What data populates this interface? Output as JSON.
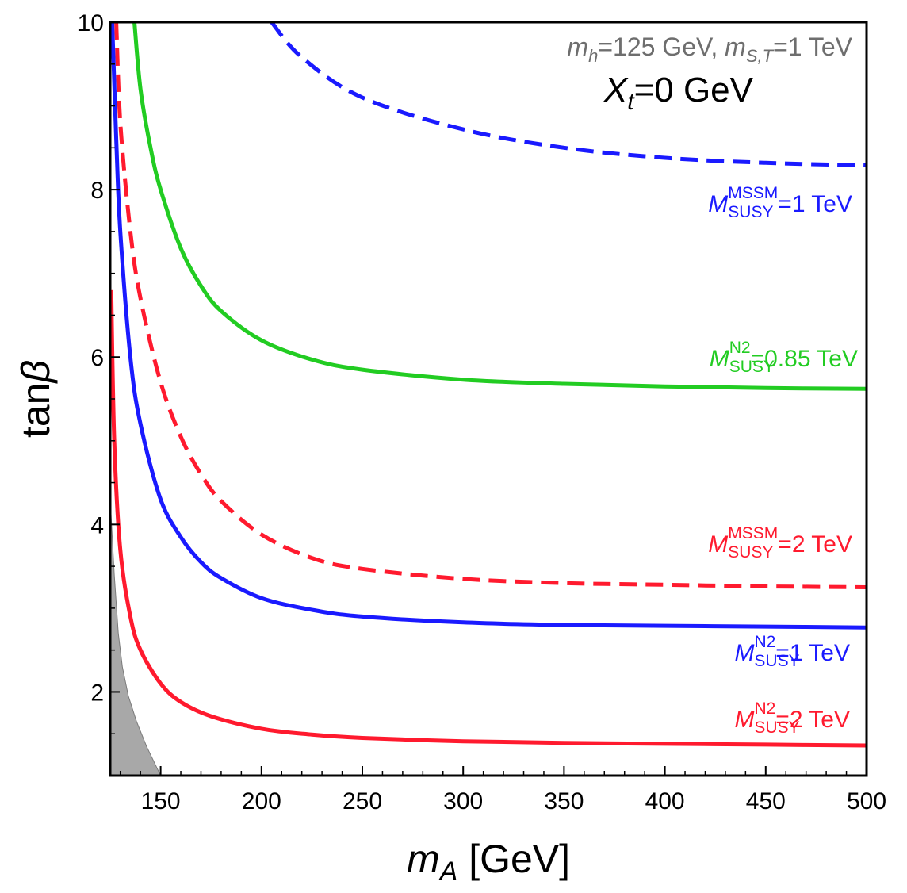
{
  "chart_data": {
    "type": "line",
    "xlabel": {
      "main": "m",
      "sub": "A",
      "unit": " [GeV]"
    },
    "ylabel": {
      "prefix": "tan",
      "greek": "β"
    },
    "xlim": [
      125,
      500
    ],
    "ylim": [
      1,
      10
    ],
    "xticks": [
      150,
      200,
      250,
      300,
      350,
      400,
      450,
      500
    ],
    "yticks": [
      2,
      4,
      6,
      8,
      10
    ],
    "grid": false,
    "annotations": {
      "params": {
        "m1": "m",
        "s1": "h",
        "t1": "=125 GeV, ",
        "m2": "m",
        "s2": "S,T",
        "t2": "=1 TeV",
        "color": "#6e6e6e"
      },
      "xt": {
        "m": "X",
        "s": "t",
        "t": "=0 GeV",
        "color": "#000000"
      }
    },
    "series": [
      {
        "label": {
          "m": "M",
          "sup": "MSSM",
          "sub": "SUSY",
          "t": "=1 TeV"
        },
        "color": "#1a1aff",
        "dash": true,
        "points": [
          [
            205,
            10
          ],
          [
            220,
            9.58
          ],
          [
            250,
            9.1
          ],
          [
            300,
            8.72
          ],
          [
            350,
            8.5
          ],
          [
            400,
            8.38
          ],
          [
            450,
            8.32
          ],
          [
            500,
            8.29
          ]
        ]
      },
      {
        "label": {
          "m": "M",
          "sup": "N2",
          "sub": "SUSY",
          "t": "=0.85 TeV"
        },
        "color": "#22cc22",
        "dash": false,
        "points": [
          [
            137,
            10
          ],
          [
            140,
            9.2
          ],
          [
            145,
            8.5
          ],
          [
            150,
            8.0
          ],
          [
            160,
            7.3
          ],
          [
            170,
            6.85
          ],
          [
            180,
            6.55
          ],
          [
            200,
            6.2
          ],
          [
            225,
            5.97
          ],
          [
            250,
            5.85
          ],
          [
            300,
            5.73
          ],
          [
            350,
            5.68
          ],
          [
            400,
            5.65
          ],
          [
            450,
            5.63
          ],
          [
            500,
            5.62
          ]
        ]
      },
      {
        "label": {
          "m": "M",
          "sup": "MSSM",
          "sub": "SUSY",
          "t": "=2 TeV"
        },
        "color": "#ff1a2e",
        "dash": true,
        "points": [
          [
            128,
            10
          ],
          [
            130,
            8.8
          ],
          [
            135,
            7.5
          ],
          [
            140,
            6.7
          ],
          [
            150,
            5.7
          ],
          [
            160,
            5.05
          ],
          [
            170,
            4.6
          ],
          [
            180,
            4.28
          ],
          [
            200,
            3.88
          ],
          [
            225,
            3.6
          ],
          [
            250,
            3.47
          ],
          [
            300,
            3.35
          ],
          [
            350,
            3.3
          ],
          [
            400,
            3.28
          ],
          [
            450,
            3.26
          ],
          [
            500,
            3.25
          ]
        ]
      },
      {
        "label": {
          "m": "M",
          "sup": "N2",
          "sub": "SUSY",
          "t": "=1 TeV"
        },
        "color": "#1a1aff",
        "dash": false,
        "points": [
          [
            126,
            10
          ],
          [
            128,
            8.6
          ],
          [
            130,
            7.5
          ],
          [
            135,
            6.0
          ],
          [
            140,
            5.2
          ],
          [
            150,
            4.3
          ],
          [
            160,
            3.85
          ],
          [
            170,
            3.55
          ],
          [
            180,
            3.36
          ],
          [
            200,
            3.12
          ],
          [
            225,
            2.98
          ],
          [
            250,
            2.9
          ],
          [
            300,
            2.83
          ],
          [
            350,
            2.8
          ],
          [
            400,
            2.79
          ],
          [
            450,
            2.78
          ],
          [
            500,
            2.77
          ]
        ]
      },
      {
        "label": {
          "m": "M",
          "sup": "N2",
          "sub": "SUSY",
          "t": "=2 TeV"
        },
        "color": "#ff1a2e",
        "dash": false,
        "points": [
          [
            125.5,
            6.8
          ],
          [
            127,
            5.0
          ],
          [
            130,
            3.7
          ],
          [
            135,
            2.9
          ],
          [
            140,
            2.5
          ],
          [
            150,
            2.1
          ],
          [
            160,
            1.88
          ],
          [
            175,
            1.71
          ],
          [
            200,
            1.56
          ],
          [
            225,
            1.49
          ],
          [
            250,
            1.45
          ],
          [
            300,
            1.41
          ],
          [
            350,
            1.39
          ],
          [
            400,
            1.38
          ],
          [
            450,
            1.37
          ],
          [
            500,
            1.36
          ]
        ]
      }
    ],
    "excluded_region": {
      "color": "#a8a8a8",
      "points": [
        [
          125,
          4.3
        ],
        [
          127,
          3.4
        ],
        [
          129,
          2.7
        ],
        [
          131,
          2.3
        ],
        [
          134,
          1.95
        ],
        [
          138,
          1.65
        ],
        [
          143,
          1.35
        ],
        [
          147,
          1.15
        ],
        [
          150,
          1.0
        ],
        [
          125,
          1.0
        ]
      ]
    }
  }
}
